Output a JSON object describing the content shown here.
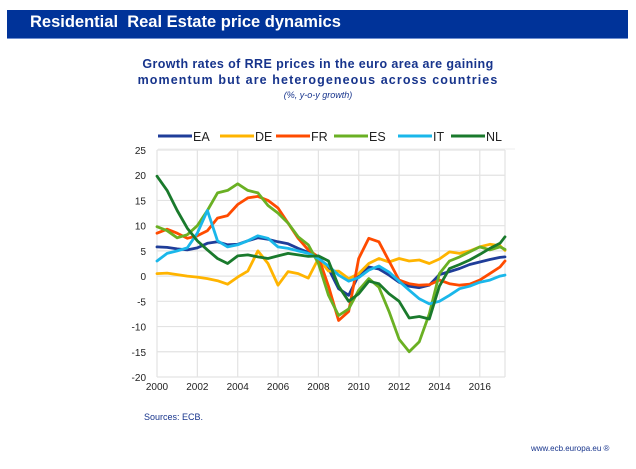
{
  "header": {
    "title": "Residential  Real Estate price dynamics"
  },
  "chart_data": {
    "type": "line",
    "title": "Growth rates of RRE prices in the euro area are gaining momentum but are heterogeneous across countries",
    "title_lines": [
      "Growth rates of RRE prices in the euro area are gaining",
      "momentum but are heterogeneous across countries"
    ],
    "subtitle": "(%, y-o-y growth)",
    "xlabel": "",
    "ylabel": "",
    "xlim": [
      2000,
      2017.25
    ],
    "ylim": [
      -20,
      25
    ],
    "x_ticks": [
      2000,
      2002,
      2004,
      2006,
      2008,
      2010,
      2012,
      2014,
      2016
    ],
    "x_tick_labels": [
      "2000",
      "2002",
      "2004",
      "2006",
      "2008",
      "2010",
      "2012",
      "2014",
      "2016"
    ],
    "y_ticks": [
      25,
      20,
      15,
      10,
      5,
      0,
      -5,
      -10,
      -15,
      -20
    ],
    "y_tick_labels": [
      "25",
      "20",
      "15",
      "10",
      "5",
      "0",
      "-5",
      "-10",
      "-15",
      "-20"
    ],
    "grid": true,
    "legend_position": "top",
    "x": [
      2000,
      2000.5,
      2001,
      2001.5,
      2002,
      2002.5,
      2003,
      2003.5,
      2004,
      2004.5,
      2005,
      2005.5,
      2006,
      2006.5,
      2007,
      2007.5,
      2008,
      2008.5,
      2009,
      2009.5,
      2010,
      2010.5,
      2011,
      2011.5,
      2012,
      2012.5,
      2013,
      2013.5,
      2014,
      2014.5,
      2015,
      2015.5,
      2016,
      2016.5,
      2017,
      2017.25
    ],
    "series": [
      {
        "name": "EA",
        "color": "#1f3d99",
        "values": [
          5.8,
          5.7,
          5.4,
          5.2,
          5.6,
          6.5,
          6.8,
          6.2,
          6.3,
          7.0,
          7.6,
          7.3,
          6.8,
          6.4,
          5.5,
          4.7,
          3.8,
          1.5,
          -2.5,
          -3.8,
          0.2,
          1.8,
          1.4,
          0.2,
          -1.2,
          -2.0,
          -2.3,
          -1.8,
          0.3,
          0.9,
          1.5,
          2.3,
          2.8,
          3.3,
          3.7,
          3.8
        ]
      },
      {
        "name": "DE",
        "color": "#ffb400",
        "values": [
          0.5,
          0.6,
          0.3,
          0.0,
          -0.2,
          -0.5,
          -0.9,
          -1.6,
          -0.2,
          1.0,
          5.0,
          2.5,
          -1.8,
          0.9,
          0.5,
          -0.4,
          3.5,
          1.0,
          1.0,
          -0.5,
          0.5,
          2.5,
          3.5,
          2.8,
          3.5,
          3.0,
          3.2,
          2.5,
          3.4,
          4.8,
          4.5,
          5.0,
          5.8,
          6.3,
          6.0,
          5.1
        ]
      },
      {
        "name": "FR",
        "color": "#ff4b00",
        "values": [
          8.5,
          9.3,
          8.5,
          7.5,
          8.0,
          9.0,
          11.5,
          12.0,
          14.2,
          15.5,
          15.8,
          15.0,
          13.5,
          10.5,
          7.5,
          5.2,
          3.8,
          -2.0,
          -8.8,
          -7.0,
          3.5,
          7.5,
          6.8,
          3.0,
          -0.8,
          -1.5,
          -1.8,
          -1.7,
          -0.8,
          -1.5,
          -1.8,
          -1.6,
          -0.8,
          0.5,
          1.8,
          3.0
        ]
      },
      {
        "name": "ES",
        "color": "#6ab023",
        "values": [
          9.8,
          9.0,
          7.6,
          8.2,
          10.0,
          13.0,
          16.5,
          17.0,
          18.3,
          17.0,
          16.5,
          14.0,
          12.5,
          10.5,
          7.8,
          6.2,
          2.5,
          -3.8,
          -7.8,
          -6.5,
          -2.8,
          -0.5,
          -2.2,
          -7.0,
          -12.5,
          -15.0,
          -13.0,
          -7.5,
          0.5,
          3.0,
          3.8,
          4.8,
          5.8,
          5.2,
          5.8,
          5.3
        ]
      },
      {
        "name": "IT",
        "color": "#1ab7ea",
        "values": [
          3.0,
          4.5,
          5.0,
          5.6,
          8.5,
          13.0,
          7.0,
          5.8,
          6.2,
          7.0,
          8.0,
          7.5,
          5.8,
          5.5,
          5.0,
          4.5,
          3.5,
          2.0,
          0.2,
          -1.0,
          -0.3,
          1.2,
          2.0,
          0.8,
          -1.0,
          -2.8,
          -4.5,
          -5.5,
          -5.0,
          -3.8,
          -2.5,
          -2.0,
          -1.2,
          -0.8,
          0.0,
          0.2
        ]
      },
      {
        "name": "NL",
        "color": "#1a7a2c",
        "values": [
          19.8,
          17.0,
          13.0,
          9.5,
          7.0,
          5.2,
          3.5,
          2.5,
          4.0,
          4.2,
          3.8,
          3.5,
          4.0,
          4.5,
          4.2,
          3.9,
          4.0,
          3.0,
          -2.0,
          -5.0,
          -3.5,
          -1.0,
          -1.5,
          -3.5,
          -5.0,
          -8.3,
          -8.0,
          -8.5,
          -2.0,
          1.5,
          2.3,
          3.2,
          4.3,
          5.5,
          6.5,
          7.8
        ]
      }
    ]
  },
  "footer": {
    "source": "Sources: ECB.",
    "url": "www.ecb.europa.eu ®"
  }
}
